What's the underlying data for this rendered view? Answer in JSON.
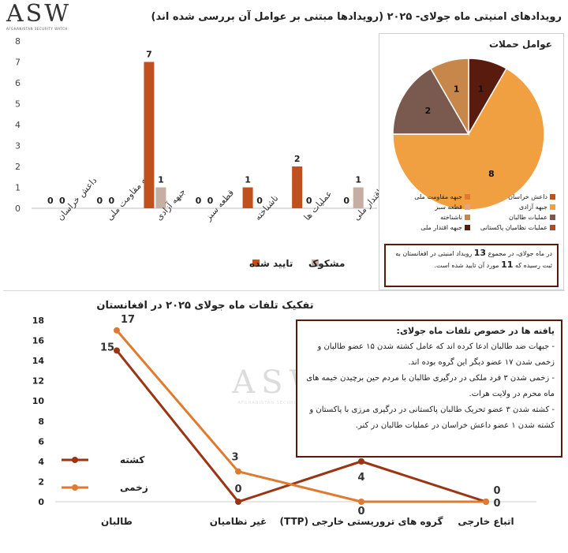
{
  "logo": {
    "text": "ASW",
    "subtitle": "AFGHANISTAN SECURITY WATCH"
  },
  "watermark": {
    "text": "ASW",
    "subtitle": "AFGHANISTAN SECURITY WATCH"
  },
  "top_title": "رویدادهای امنیتی ماه جولای- ۲۰۲۵ (رویدادها مبتنی بر عوامل آن بررسی شده اند)",
  "pie_title": "عوامل حملات",
  "summary_note": {
    "text_before": "در ماه جولای، در مجموع",
    "count": "13",
    "text_middle": "رویداد امنیتی در افغانستان به ثبت رسیده که",
    "confirmed": "11",
    "text_after": "مورد آن تایید شده است."
  },
  "findings": {
    "title": "یافته ها در خصوص تلفات ماه جولای:",
    "items": [
      "- جبهات ضد طالبان ادعا کرده اند که عامل کشته شدن ۱۵ عضو طالبان و زخمی شدن ۱۷ عضو دیگر این گروه بوده اند.",
      "- زخمی شدن ۳ فرد ملکی در درگیری طالبان با مردم حین برچیدن خیمه های ماه محرم در ولایت هرات.",
      "- کشته شدن ۳ عضو تحریک طالبان پاکستانی در درگیری مرزی با پاکستان و کشته شدن ۱ عضو داعش خراسان در عملیات طالبان در کنر."
    ]
  },
  "colors": {
    "confirmed": "#c0501c",
    "suspect": "#c6aea3",
    "killed": "#9a3412",
    "wounded": "#e07a2f",
    "note_border": "#5a1b0f"
  },
  "chart_data": [
    {
      "type": "bar",
      "title": "رویدادهای امنیتی ماه جولای- ۲۰۲۵ (رویدادها مبتنی بر عوامل آن بررسی شده اند)",
      "categories": [
        "داعش خراسان",
        "جبهه مقاومت ملی",
        "جبهه آزادی",
        "قطعه سبز",
        "ناشناخته",
        "عملیات ها",
        "جبهه اقتدار ملی"
      ],
      "series": [
        {
          "name": "تایید شده",
          "values": [
            0,
            0,
            7,
            0,
            1,
            2,
            0
          ]
        },
        {
          "name": "مشکوک",
          "values": [
            0,
            0,
            1,
            0,
            0,
            0,
            1
          ]
        }
      ],
      "ylim": [
        0,
        8
      ],
      "yticks": [
        0,
        1,
        2,
        3,
        4,
        5,
        6,
        7,
        8
      ],
      "legend": "bottom",
      "grid": false
    },
    {
      "type": "pie",
      "title": "عوامل حملات",
      "slices": [
        {
          "label": "داعش خراسان",
          "value": 0,
          "color": "#c0501c"
        },
        {
          "label": "جبهه مقاومت ملی",
          "value": 0,
          "color": "#e07a2f"
        },
        {
          "label": "جبهه آزادی",
          "value": 8,
          "color": "#f0a040"
        },
        {
          "label": "قطعه سبز",
          "value": 0,
          "color": "#e6a57a"
        },
        {
          "label": "عملیات طالبان",
          "value": 2,
          "color": "#7a5a4e"
        },
        {
          "label": "ناشناخته",
          "value": 1,
          "color": "#c8874a"
        },
        {
          "label": "عملیات نظامیان پاکستانی",
          "value": 0,
          "color": "#b34a1c"
        },
        {
          "label": "جبهه اقتدار ملی",
          "value": 1,
          "color": "#5a1b0f"
        }
      ],
      "legend": "bottom"
    },
    {
      "type": "line",
      "title": "تفکیک تلفات ماه جولای ۲۰۲۵ در افغانستان",
      "categories": [
        "طالبان",
        "غیر نظامیان",
        "گروه های تروریستی خارجی (TTP)",
        "اتباع خارجی"
      ],
      "series": [
        {
          "name": "کشته",
          "values": [
            15,
            0,
            4,
            0
          ]
        },
        {
          "name": "زخمی",
          "values": [
            17,
            3,
            0,
            0
          ]
        }
      ],
      "ylim": [
        0,
        18
      ],
      "yticks": [
        0,
        2,
        4,
        6,
        8,
        10,
        12,
        14,
        16,
        18
      ],
      "legend": "left",
      "grid": false
    }
  ]
}
